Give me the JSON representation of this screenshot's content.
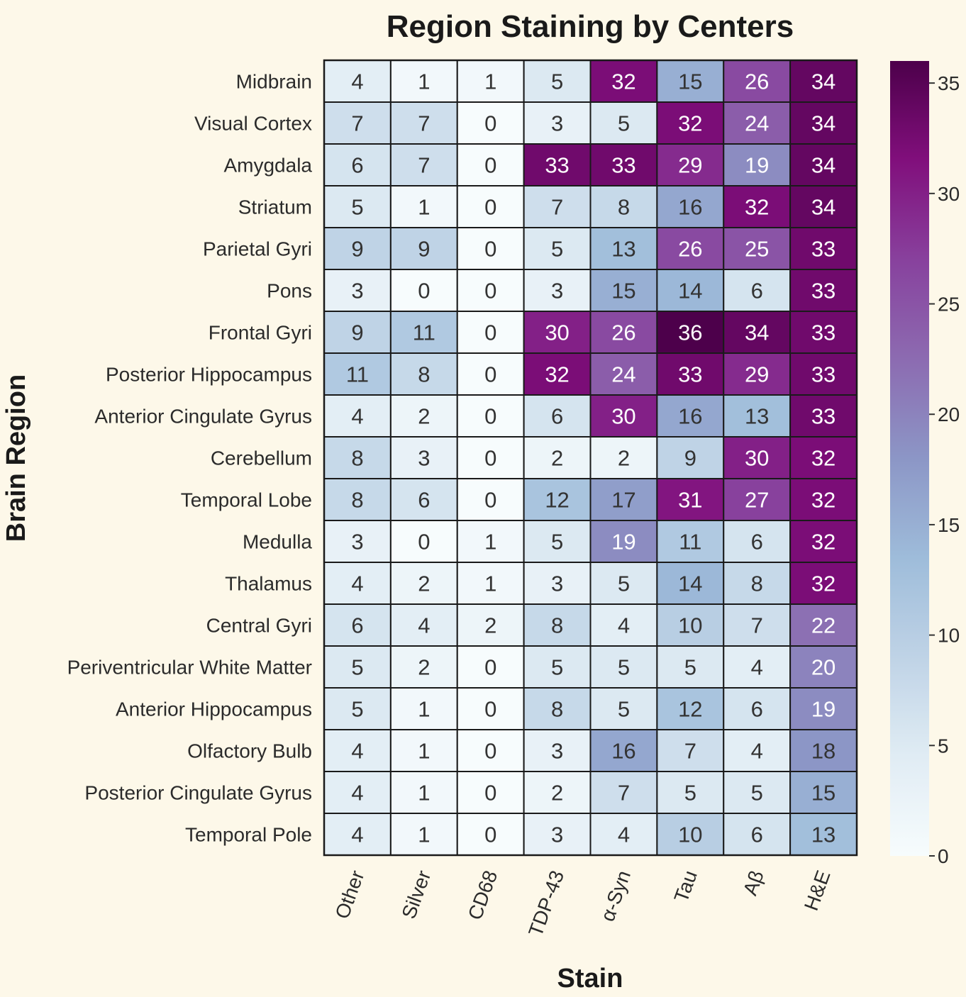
{
  "background": "#fdf8e9",
  "chart_data": {
    "type": "heatmap",
    "title": "Region Staining by Centers",
    "xlabel": "Stain",
    "ylabel": "Brain Region",
    "columns": [
      "Other",
      "Silver",
      "CD68",
      "TDP-43",
      "α-Syn",
      "Tau",
      "Aβ",
      "H&E"
    ],
    "rows": [
      "Midbrain",
      "Visual Cortex",
      "Amygdala",
      "Striatum",
      "Parietal Gyri",
      "Pons",
      "Frontal Gyri",
      "Posterior Hippocampus",
      "Anterior Cingulate Gyrus",
      "Cerebellum",
      "Temporal Lobe",
      "Medulla",
      "Thalamus",
      "Central Gyri",
      "Periventricular White Matter",
      "Anterior Hippocampus",
      "Olfactory Bulb",
      "Posterior Cingulate Gyrus",
      "Temporal Pole"
    ],
    "values": [
      [
        4,
        1,
        1,
        5,
        32,
        15,
        26,
        34
      ],
      [
        7,
        7,
        0,
        3,
        5,
        32,
        24,
        34
      ],
      [
        6,
        7,
        0,
        33,
        33,
        29,
        19,
        34
      ],
      [
        5,
        1,
        0,
        7,
        8,
        16,
        32,
        34
      ],
      [
        9,
        9,
        0,
        5,
        13,
        26,
        25,
        33
      ],
      [
        3,
        0,
        0,
        3,
        15,
        14,
        6,
        33
      ],
      [
        9,
        11,
        0,
        30,
        26,
        36,
        34,
        33
      ],
      [
        11,
        8,
        0,
        32,
        24,
        33,
        29,
        33
      ],
      [
        4,
        2,
        0,
        6,
        30,
        16,
        13,
        33
      ],
      [
        8,
        3,
        0,
        2,
        2,
        9,
        30,
        32
      ],
      [
        8,
        6,
        0,
        12,
        17,
        31,
        27,
        32
      ],
      [
        3,
        0,
        1,
        5,
        19,
        11,
        6,
        32
      ],
      [
        4,
        2,
        1,
        3,
        5,
        14,
        8,
        32
      ],
      [
        6,
        4,
        2,
        8,
        4,
        10,
        7,
        22
      ],
      [
        5,
        2,
        0,
        5,
        5,
        5,
        4,
        20
      ],
      [
        5,
        1,
        0,
        8,
        5,
        12,
        6,
        19
      ],
      [
        4,
        1,
        0,
        3,
        16,
        7,
        4,
        18
      ],
      [
        4,
        1,
        0,
        2,
        7,
        5,
        5,
        15
      ],
      [
        4,
        1,
        0,
        3,
        4,
        10,
        6,
        13
      ]
    ],
    "colorbar": {
      "min": 0,
      "max": 36,
      "ticks": [
        "0",
        "5",
        "10",
        "15",
        "20",
        "25",
        "30",
        "35"
      ],
      "colormap": "BuPu",
      "colors": [
        "#f7fcfd",
        "#e0ecf4",
        "#bfd3e6",
        "#9ebcda",
        "#8c96c6",
        "#8c6bb1",
        "#88419d",
        "#810f7c",
        "#4d004b"
      ]
    },
    "legend": "right",
    "grid": false
  }
}
